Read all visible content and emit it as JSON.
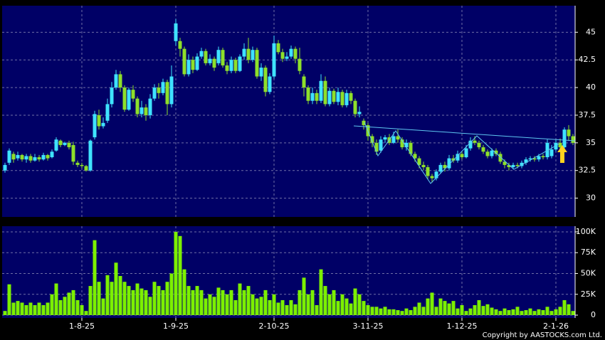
{
  "chart_data": [
    {
      "type": "candlestick",
      "up_color": "#3fe3ff",
      "down_color": "#8ee02a",
      "ylim": [
        28.3,
        47.4
      ],
      "yticks": [
        30,
        32.5,
        35,
        37.5,
        40,
        42.5,
        45
      ],
      "grid": true,
      "open": [
        32.5,
        33.2,
        34.0,
        33.6,
        33.9,
        33.5,
        33.8,
        33.4,
        33.7,
        33.5,
        33.9,
        33.7,
        34.3,
        35.2,
        34.8,
        35.0,
        34.8,
        33.2,
        33.0,
        32.9,
        32.5,
        35.5,
        37.5,
        36.5,
        37.0,
        38.5,
        40.0,
        41.2,
        40.0,
        38.0,
        39.8,
        39.0,
        37.6,
        38.2,
        37.5,
        39.0,
        40.0,
        39.5,
        40.5,
        38.5,
        44.2,
        44.2,
        43.5,
        41.2,
        42.5,
        41.6,
        42.8,
        43.3,
        42.2,
        42.6,
        42.2,
        43.4,
        42.0,
        41.5,
        42.5,
        41.5,
        42.8,
        43.5,
        42.5,
        43.4,
        41.0,
        41.8,
        39.6,
        41.0,
        44.0,
        43.2,
        42.6,
        42.8,
        43.5,
        42.6,
        41.0,
        40.0,
        38.8,
        39.5,
        38.8,
        40.6,
        38.5,
        39.7,
        38.7,
        39.6,
        38.4,
        39.5,
        38.8,
        37.6,
        37.0,
        36.6,
        35.6,
        35.0,
        34.3,
        35.3,
        35.5,
        35.0,
        35.6,
        35.3,
        34.6,
        35.0,
        34.0,
        33.6,
        33.0,
        32.8,
        32.0,
        31.8,
        32.4,
        33.0,
        32.7,
        33.6,
        33.4,
        34.0,
        33.7,
        34.5,
        35.2,
        35.0,
        34.6,
        34.2,
        33.8,
        34.3,
        34.0,
        33.3,
        33.0,
        32.8,
        33.0,
        32.9,
        33.2,
        33.5,
        33.6,
        33.5,
        33.8,
        33.7,
        33.8,
        34.4,
        35.0,
        34.6,
        36.2,
        35.6
      ],
      "high": [
        33.2,
        34.5,
        34.2,
        34.2,
        34.0,
        34.0,
        34.0,
        34.0,
        33.9,
        34.1,
        34.0,
        34.4,
        35.5,
        35.3,
        35.1,
        35.2,
        35.1,
        33.4,
        33.2,
        33.0,
        35.3,
        37.9,
        38.0,
        37.3,
        39.0,
        40.5,
        41.6,
        41.5,
        40.2,
        40.0,
        40.2,
        39.2,
        38.8,
        38.5,
        39.4,
        40.3,
        40.4,
        40.8,
        40.7,
        42.0,
        46.2,
        44.5,
        43.7,
        43.0,
        42.8,
        43.1,
        43.6,
        43.5,
        43.0,
        42.8,
        43.7,
        43.6,
        42.3,
        42.8,
        42.7,
        43.0,
        44.0,
        44.5,
        43.7,
        43.6,
        42.2,
        42.0,
        41.3,
        44.7,
        44.3,
        43.5,
        43.2,
        43.8,
        43.7,
        43.6,
        41.2,
        40.2,
        40.0,
        39.8,
        41.2,
        41.0,
        40.0,
        39.9,
        40.0,
        39.8,
        39.8,
        39.7,
        39.0,
        38.3,
        37.2,
        36.8,
        35.8,
        35.3,
        35.6,
        35.7,
        35.8,
        36.0,
        36.2,
        35.5,
        35.3,
        35.2,
        34.2,
        33.8,
        33.3,
        33.0,
        32.2,
        32.6,
        33.2,
        33.3,
        33.9,
        33.9,
        34.3,
        34.2,
        34.8,
        35.5,
        35.6,
        35.2,
        34.8,
        34.4,
        34.5,
        34.5,
        34.2,
        33.5,
        33.2,
        33.2,
        33.2,
        33.4,
        33.7,
        33.8,
        33.8,
        34.0,
        34.0,
        35.3,
        34.8,
        35.3,
        35.4,
        36.4,
        36.6,
        35.8
      ],
      "low": [
        32.3,
        33.0,
        33.2,
        33.4,
        33.3,
        33.2,
        33.2,
        33.3,
        33.3,
        33.4,
        33.4,
        33.6,
        34.2,
        34.6,
        34.7,
        34.4,
        33.0,
        32.8,
        32.7,
        32.4,
        32.4,
        35.3,
        36.2,
        36.3,
        36.8,
        38.2,
        39.8,
        39.6,
        37.8,
        37.9,
        38.7,
        37.3,
        37.3,
        37.0,
        37.2,
        38.8,
        39.0,
        39.3,
        37.5,
        38.2,
        43.8,
        42.8,
        41.0,
        41.0,
        41.3,
        41.5,
        42.6,
        42.0,
        42.0,
        41.5,
        42.0,
        41.8,
        41.2,
        41.3,
        41.3,
        41.4,
        42.5,
        42.2,
        42.3,
        40.8,
        40.6,
        39.2,
        39.4,
        40.8,
        43.0,
        42.3,
        42.4,
        42.6,
        42.2,
        41.2,
        39.2,
        38.5,
        38.5,
        38.5,
        38.6,
        38.3,
        38.3,
        38.5,
        38.4,
        38.2,
        38.2,
        38.5,
        37.3,
        37.3,
        36.2,
        35.2,
        34.6,
        33.9,
        34.1,
        35.0,
        34.8,
        34.9,
        35.0,
        34.4,
        34.3,
        33.8,
        33.3,
        32.7,
        32.5,
        31.7,
        31.4,
        31.6,
        32.2,
        32.4,
        32.5,
        33.2,
        33.2,
        33.5,
        33.6,
        34.3,
        34.8,
        34.4,
        34.0,
        33.6,
        33.6,
        33.8,
        33.1,
        32.7,
        32.5,
        32.6,
        32.7,
        32.7,
        33.0,
        33.3,
        33.3,
        33.3,
        33.5,
        33.5,
        33.6,
        34.2,
        34.2,
        34.5,
        35.2,
        34.8
      ],
      "close": [
        33.0,
        34.3,
        33.5,
        33.9,
        33.5,
        33.8,
        33.4,
        33.7,
        33.5,
        33.9,
        33.6,
        34.2,
        35.3,
        34.8,
        35.0,
        34.6,
        33.3,
        33.0,
        32.9,
        32.5,
        35.2,
        37.6,
        36.5,
        36.8,
        38.5,
        40.0,
        41.2,
        40.0,
        38.0,
        39.8,
        39.0,
        37.6,
        38.2,
        37.5,
        39.0,
        40.0,
        39.5,
        40.5,
        38.5,
        41.0,
        45.8,
        43.5,
        41.2,
        42.5,
        41.6,
        42.8,
        43.3,
        42.2,
        42.6,
        41.8,
        43.4,
        42.0,
        41.5,
        42.5,
        41.5,
        42.8,
        43.5,
        42.5,
        43.4,
        41.0,
        41.8,
        39.6,
        41.0,
        44.0,
        43.2,
        42.6,
        42.8,
        43.5,
        42.6,
        41.5,
        40.0,
        38.8,
        39.5,
        38.8,
        40.6,
        38.5,
        39.7,
        38.7,
        39.6,
        38.4,
        39.5,
        38.8,
        37.6,
        37.8,
        36.6,
        35.6,
        35.0,
        34.2,
        35.3,
        35.5,
        35.0,
        35.6,
        35.3,
        34.6,
        35.0,
        34.0,
        33.6,
        33.0,
        32.8,
        32.0,
        31.8,
        32.4,
        33.0,
        32.7,
        33.6,
        33.4,
        34.0,
        33.7,
        34.5,
        35.2,
        35.0,
        34.6,
        34.2,
        33.8,
        34.3,
        34.0,
        33.3,
        33.0,
        32.8,
        33.0,
        32.9,
        33.2,
        33.5,
        33.6,
        33.5,
        33.8,
        33.7,
        35.0,
        34.4,
        35.0,
        34.6,
        36.2,
        35.6,
        35.0
      ]
    },
    {
      "type": "bar",
      "color": "#7cf000",
      "ylim": [
        -3400,
        106800
      ],
      "yticks": [
        0,
        {
          "value": 25000,
          "label": "25K"
        },
        {
          "value": 50000,
          "label": "50K"
        },
        {
          "value": 75000,
          "label": "75K"
        },
        {
          "value": 100000,
          "label": "100K"
        }
      ],
      "grid": true,
      "categories": [
        null,
        null,
        null,
        null,
        null,
        null,
        null,
        null,
        null,
        null,
        null,
        null,
        null,
        null,
        null,
        null,
        null,
        null,
        "1-8-25",
        null,
        null,
        null,
        null,
        null,
        null,
        null,
        null,
        null,
        null,
        null,
        null,
        null,
        null,
        null,
        null,
        null,
        null,
        null,
        null,
        null,
        "1-9-25",
        null,
        null,
        null,
        null,
        null,
        null,
        null,
        null,
        null,
        null,
        null,
        null,
        null,
        null,
        null,
        null,
        null,
        null,
        null,
        null,
        null,
        null,
        "2-10-25",
        null,
        null,
        null,
        null,
        null,
        null,
        null,
        null,
        null,
        null,
        null,
        null,
        null,
        null,
        null,
        null,
        null,
        null,
        null,
        null,
        null,
        "3-11-25",
        null,
        null,
        null,
        null,
        null,
        null,
        null,
        null,
        null,
        null,
        null,
        null,
        null,
        null,
        null,
        null,
        null,
        null,
        null,
        null,
        null,
        "1-12-25",
        null,
        null,
        null,
        null,
        null,
        null,
        null,
        null,
        null,
        null,
        null,
        null,
        null,
        null,
        null,
        null,
        null,
        null,
        null,
        null,
        null,
        "2-1-26",
        null,
        null,
        null,
        null
      ],
      "values": [
        5000,
        37000,
        15000,
        17000,
        15000,
        12000,
        15000,
        12000,
        15000,
        12000,
        15000,
        25000,
        38000,
        18000,
        22000,
        27000,
        30000,
        18000,
        12000,
        5000,
        35000,
        90000,
        40000,
        20000,
        48000,
        40000,
        63000,
        47000,
        40000,
        35000,
        30000,
        38000,
        32000,
        30000,
        22000,
        40000,
        35000,
        30000,
        40000,
        50000,
        100000,
        95000,
        55000,
        35000,
        30000,
        35000,
        30000,
        20000,
        25000,
        22000,
        33000,
        30000,
        25000,
        30000,
        18000,
        38000,
        30000,
        35000,
        25000,
        20000,
        22000,
        30000,
        18000,
        25000,
        15000,
        18000,
        12000,
        18000,
        13000,
        30000,
        45000,
        25000,
        30000,
        12000,
        55000,
        35000,
        25000,
        30000,
        17000,
        25000,
        20000,
        14000,
        32000,
        25000,
        17000,
        12000,
        10000,
        10000,
        8000,
        10000,
        7000,
        7000,
        6000,
        5000,
        8000,
        6000,
        10000,
        15000,
        10000,
        20000,
        27000,
        10000,
        20000,
        17000,
        14000,
        17000,
        8000,
        12000,
        5000,
        8000,
        12000,
        18000,
        11000,
        13000,
        9000,
        7000,
        5000,
        8000,
        6000,
        7000,
        10000,
        5000,
        6000,
        8000,
        5000,
        7000,
        6000,
        10000,
        5000,
        7000,
        10000,
        18000,
        13000,
        5000
      ]
    }
  ],
  "copyright": "Copyright by AASTOCKS.com Ltd."
}
